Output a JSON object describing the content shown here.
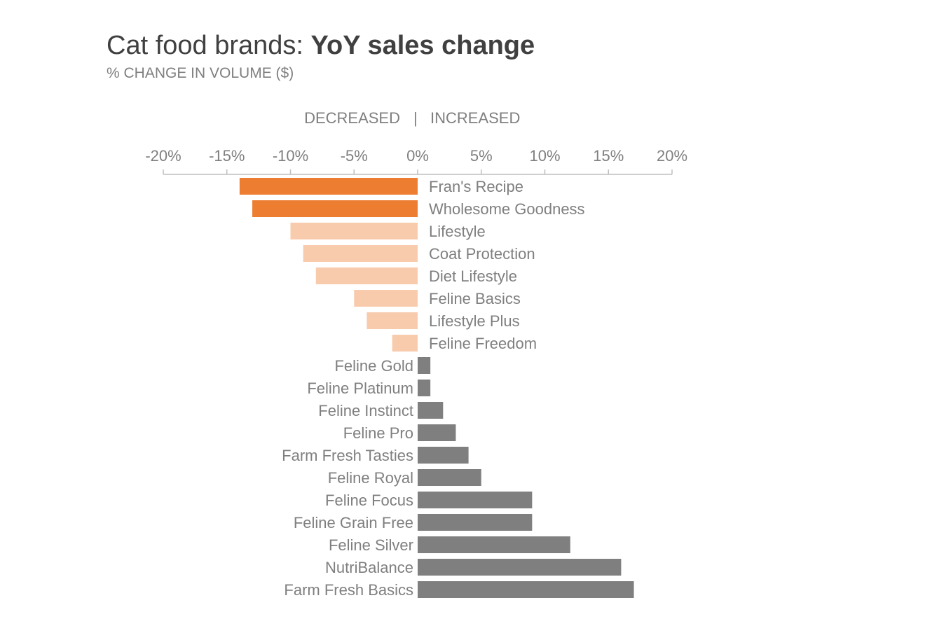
{
  "title": {
    "regular": "Cat food brands: ",
    "bold": "YoY sales change"
  },
  "subtitle": "% CHANGE IN VOLUME ($)",
  "direction": {
    "left": "DECREASED",
    "separator": "|",
    "right": "INCREASED"
  },
  "colors": {
    "highlight": "#ed7d31",
    "decrease": "#f8cbad",
    "increase": "#7f7f7f",
    "axis": "#bfbfbf",
    "label": "#7f7f7f"
  },
  "chart_data": {
    "type": "bar",
    "orientation": "horizontal",
    "xlim": [
      -20,
      20
    ],
    "ticks": [
      {
        "value": -20,
        "label": "-20%"
      },
      {
        "value": -15,
        "label": "-15%"
      },
      {
        "value": -10,
        "label": "-10%"
      },
      {
        "value": -5,
        "label": "-5%"
      },
      {
        "value": 0,
        "label": "0%"
      },
      {
        "value": 5,
        "label": "5%"
      },
      {
        "value": 10,
        "label": "10%"
      },
      {
        "value": 15,
        "label": "15%"
      },
      {
        "value": 20,
        "label": "20%"
      }
    ],
    "grid": false,
    "categories": [
      "Fran's Recipe",
      "Wholesome Goodness",
      "Lifestyle",
      "Coat Protection",
      "Diet Lifestyle",
      "Feline Basics",
      "Lifestyle Plus",
      "Feline Freedom",
      "Feline Gold",
      "Feline Platinum",
      "Feline Instinct",
      "Feline Pro",
      "Farm Fresh Tasties",
      "Feline Royal",
      "Feline Focus",
      "Feline Grain Free",
      "Feline Silver",
      "NutriBalance",
      "Farm Fresh Basics"
    ],
    "values": [
      -14,
      -13,
      -10,
      -9,
      -8,
      -5,
      -4,
      -2,
      1,
      1,
      2,
      3,
      4,
      5,
      9,
      9,
      12,
      16,
      17
    ],
    "highlighted": [
      "Fran's Recipe",
      "Wholesome Goodness"
    ]
  }
}
